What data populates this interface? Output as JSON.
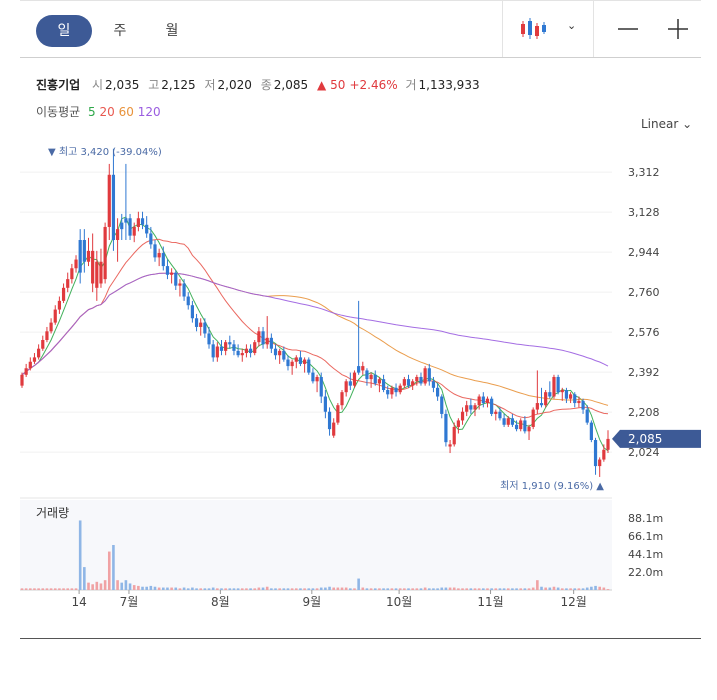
{
  "toolbar": {
    "periods": [
      "일",
      "주",
      "월"
    ],
    "active_period": "일",
    "chart_type_icon": "candlestick-icon",
    "zoom_out_icon": "minus-icon",
    "zoom_in_icon": "plus-icon"
  },
  "stock": {
    "name": "진흥기업",
    "open_label": "시",
    "open": "2,035",
    "high_label": "고",
    "high": "2,125",
    "low_label": "저",
    "low": "2,020",
    "close_label": "종",
    "close": "2,085",
    "change": "50",
    "change_pct": "+2.46%",
    "volume_label": "거",
    "volume": "1,133,933"
  },
  "moving_average": {
    "label": "이동평균",
    "periods": [
      {
        "period": "5",
        "color": "#2ea84a"
      },
      {
        "period": "20",
        "color": "#e8584f"
      },
      {
        "period": "60",
        "color": "#e8923a"
      },
      {
        "period": "120",
        "color": "#9a5de0"
      }
    ]
  },
  "scale_label": "Linear",
  "colors": {
    "up": "#e03a3e",
    "down": "#2f78d2",
    "price_tag": "#3d5a96"
  },
  "chart_data": {
    "type": "candlestick",
    "price_axis": {
      "ylim": [
        1850,
        3460
      ],
      "ticks": [
        "3,312",
        "3,128",
        "2,944",
        "2,760",
        "2,576",
        "2,392",
        "2,208",
        "2,024"
      ]
    },
    "volume_axis": {
      "label": "거래량",
      "ylim": [
        0,
        110
      ],
      "unit": "m",
      "ticks": [
        "88.1m",
        "66.1m",
        "44.1m",
        "22.0m"
      ]
    },
    "x_labels": [
      "14",
      "7월",
      "8월",
      "9월",
      "10월",
      "11월",
      "12월"
    ],
    "current_price": "2,085",
    "max_annotation": "최고 3,420 (-39.04%)",
    "min_annotation": "최저 1,910 (9.16%)",
    "candles": [
      [
        2330,
        2390,
        2320,
        2380,
        2,
        0
      ],
      [
        2380,
        2430,
        2370,
        2410,
        2,
        0
      ],
      [
        2410,
        2460,
        2400,
        2440,
        2,
        0
      ],
      [
        2440,
        2480,
        2430,
        2460,
        2,
        0
      ],
      [
        2460,
        2520,
        2450,
        2500,
        2,
        0
      ],
      [
        2500,
        2560,
        2490,
        2540,
        2,
        0
      ],
      [
        2540,
        2600,
        2530,
        2580,
        2,
        0
      ],
      [
        2580,
        2640,
        2570,
        2620,
        2,
        0
      ],
      [
        2620,
        2700,
        2610,
        2680,
        2,
        0
      ],
      [
        2680,
        2740,
        2660,
        2720,
        2,
        0
      ],
      [
        2720,
        2800,
        2710,
        2780,
        2,
        0
      ],
      [
        2780,
        2850,
        2760,
        2820,
        2,
        0
      ],
      [
        2820,
        2890,
        2800,
        2870,
        2,
        0
      ],
      [
        2870,
        2930,
        2850,
        2910,
        2,
        0
      ],
      [
        2850,
        3050,
        2800,
        3000,
        85,
        1
      ],
      [
        3000,
        3050,
        2850,
        2900,
        28,
        1
      ],
      [
        2900,
        3010,
        2880,
        2950,
        9,
        0
      ],
      [
        2950,
        3030,
        2760,
        2800,
        7,
        0
      ],
      [
        2780,
        2950,
        2720,
        2900,
        10,
        0
      ],
      [
        2900,
        2960,
        2780,
        2800,
        8,
        0
      ],
      [
        2820,
        3080,
        2800,
        3060,
        12,
        0
      ],
      [
        3060,
        3350,
        3000,
        3300,
        47,
        0
      ],
      [
        3300,
        3420,
        2950,
        3000,
        55,
        1
      ],
      [
        3000,
        3100,
        2900,
        3050,
        12,
        0
      ],
      [
        3050,
        3120,
        3000,
        3080,
        9,
        1
      ],
      [
        3080,
        3350,
        3000,
        3100,
        12,
        1
      ],
      [
        3100,
        3120,
        3000,
        3020,
        8,
        1
      ],
      [
        3020,
        3080,
        2990,
        3060,
        6,
        0
      ],
      [
        3060,
        3130,
        3040,
        3100,
        5,
        0
      ],
      [
        3100,
        3130,
        3050,
        3070,
        4,
        1
      ],
      [
        3070,
        3110,
        3010,
        3030,
        4,
        1
      ],
      [
        3030,
        3060,
        2960,
        2980,
        5,
        1
      ],
      [
        2980,
        3000,
        2900,
        2920,
        4,
        1
      ],
      [
        2920,
        2960,
        2880,
        2940,
        3,
        0
      ],
      [
        2940,
        2970,
        2860,
        2880,
        3,
        1
      ],
      [
        2880,
        2910,
        2820,
        2840,
        3,
        1
      ],
      [
        2840,
        2870,
        2800,
        2850,
        3,
        0
      ],
      [
        2850,
        2860,
        2770,
        2790,
        3,
        1
      ],
      [
        2790,
        2820,
        2740,
        2800,
        2,
        0
      ],
      [
        2800,
        2820,
        2720,
        2740,
        3,
        1
      ],
      [
        2740,
        2760,
        2680,
        2700,
        2,
        1
      ],
      [
        2700,
        2720,
        2620,
        2640,
        3,
        1
      ],
      [
        2640,
        2660,
        2580,
        2600,
        2,
        1
      ],
      [
        2600,
        2640,
        2560,
        2620,
        2,
        0
      ],
      [
        2620,
        2640,
        2550,
        2570,
        2,
        1
      ],
      [
        2570,
        2600,
        2500,
        2520,
        2,
        1
      ],
      [
        2520,
        2540,
        2440,
        2460,
        3,
        1
      ],
      [
        2460,
        2530,
        2440,
        2510,
        2,
        0
      ],
      [
        2510,
        2540,
        2470,
        2490,
        2,
        1
      ],
      [
        2490,
        2540,
        2470,
        2530,
        2,
        0
      ],
      [
        2530,
        2560,
        2500,
        2520,
        2,
        1
      ],
      [
        2520,
        2540,
        2470,
        2490,
        2,
        1
      ],
      [
        2490,
        2520,
        2460,
        2470,
        2,
        1
      ],
      [
        2470,
        2500,
        2440,
        2480,
        2,
        0
      ],
      [
        2480,
        2520,
        2460,
        2500,
        2,
        0
      ],
      [
        2500,
        2520,
        2460,
        2480,
        2,
        1
      ],
      [
        2480,
        2540,
        2470,
        2530,
        2,
        0
      ],
      [
        2530,
        2600,
        2510,
        2580,
        3,
        0
      ],
      [
        2580,
        2600,
        2500,
        2520,
        3,
        1
      ],
      [
        2520,
        2650,
        2500,
        2550,
        4,
        0
      ],
      [
        2550,
        2570,
        2480,
        2500,
        2,
        1
      ],
      [
        2500,
        2520,
        2450,
        2470,
        2,
        1
      ],
      [
        2470,
        2500,
        2430,
        2490,
        2,
        0
      ],
      [
        2490,
        2510,
        2440,
        2450,
        2,
        1
      ],
      [
        2450,
        2470,
        2400,
        2420,
        2,
        1
      ],
      [
        2420,
        2450,
        2380,
        2440,
        2,
        0
      ],
      [
        2440,
        2470,
        2410,
        2460,
        2,
        0
      ],
      [
        2460,
        2490,
        2420,
        2430,
        2,
        1
      ],
      [
        2430,
        2460,
        2390,
        2450,
        2,
        0
      ],
      [
        2450,
        2460,
        2380,
        2390,
        2,
        1
      ],
      [
        2390,
        2410,
        2340,
        2350,
        2,
        1
      ],
      [
        2350,
        2380,
        2300,
        2370,
        2,
        0
      ],
      [
        2370,
        2390,
        2250,
        2280,
        3,
        1
      ],
      [
        2280,
        2310,
        2180,
        2210,
        3,
        1
      ],
      [
        2210,
        2230,
        2100,
        2130,
        4,
        1
      ],
      [
        2100,
        2180,
        2090,
        2160,
        3,
        0
      ],
      [
        2160,
        2250,
        2150,
        2240,
        3,
        0
      ],
      [
        2240,
        2310,
        2220,
        2300,
        3,
        0
      ],
      [
        2300,
        2360,
        2280,
        2350,
        3,
        0
      ],
      [
        2350,
        2390,
        2310,
        2330,
        2,
        1
      ],
      [
        2330,
        2400,
        2320,
        2390,
        2,
        0
      ],
      [
        2390,
        2720,
        2380,
        2420,
        14,
        1
      ],
      [
        2420,
        2440,
        2380,
        2400,
        3,
        0
      ],
      [
        2400,
        2410,
        2330,
        2360,
        2,
        1
      ],
      [
        2360,
        2390,
        2320,
        2380,
        2,
        0
      ],
      [
        2380,
        2400,
        2330,
        2340,
        2,
        1
      ],
      [
        2340,
        2370,
        2300,
        2360,
        2,
        0
      ],
      [
        2360,
        2380,
        2300,
        2310,
        2,
        1
      ],
      [
        2310,
        2330,
        2270,
        2290,
        2,
        1
      ],
      [
        2290,
        2330,
        2270,
        2320,
        2,
        0
      ],
      [
        2320,
        2340,
        2280,
        2300,
        2,
        1
      ],
      [
        2300,
        2340,
        2290,
        2330,
        2,
        0
      ],
      [
        2330,
        2370,
        2320,
        2360,
        2,
        0
      ],
      [
        2360,
        2380,
        2320,
        2330,
        2,
        1
      ],
      [
        2330,
        2360,
        2310,
        2350,
        2,
        0
      ],
      [
        2350,
        2380,
        2330,
        2370,
        2,
        0
      ],
      [
        2370,
        2390,
        2330,
        2340,
        2,
        1
      ],
      [
        2340,
        2420,
        2330,
        2410,
        3,
        0
      ],
      [
        2410,
        2430,
        2330,
        2350,
        2,
        1
      ],
      [
        2350,
        2370,
        2300,
        2320,
        2,
        1
      ],
      [
        2320,
        2340,
        2260,
        2280,
        2,
        1
      ],
      [
        2280,
        2290,
        2180,
        2200,
        3,
        1
      ],
      [
        2200,
        2220,
        2050,
        2070,
        3,
        1
      ],
      [
        2050,
        2080,
        2020,
        2060,
        3,
        0
      ],
      [
        2060,
        2160,
        2050,
        2140,
        3,
        0
      ],
      [
        2140,
        2180,
        2110,
        2170,
        2,
        0
      ],
      [
        2170,
        2230,
        2150,
        2210,
        2,
        0
      ],
      [
        2210,
        2260,
        2190,
        2240,
        2,
        0
      ],
      [
        2240,
        2270,
        2200,
        2220,
        2,
        1
      ],
      [
        2220,
        2250,
        2190,
        2240,
        2,
        0
      ],
      [
        2240,
        2290,
        2220,
        2280,
        2,
        0
      ],
      [
        2280,
        2300,
        2230,
        2250,
        2,
        1
      ],
      [
        2250,
        2280,
        2230,
        2270,
        2,
        0
      ],
      [
        2270,
        2280,
        2190,
        2200,
        2,
        1
      ],
      [
        2200,
        2220,
        2170,
        2210,
        2,
        0
      ],
      [
        2210,
        2230,
        2170,
        2180,
        2,
        1
      ],
      [
        2180,
        2200,
        2140,
        2150,
        2,
        1
      ],
      [
        2150,
        2190,
        2140,
        2180,
        2,
        0
      ],
      [
        2180,
        2200,
        2140,
        2150,
        2,
        1
      ],
      [
        2150,
        2170,
        2120,
        2130,
        2,
        1
      ],
      [
        2130,
        2180,
        2120,
        2170,
        2,
        0
      ],
      [
        2170,
        2190,
        2110,
        2120,
        2,
        1
      ],
      [
        2120,
        2150,
        2080,
        2140,
        2,
        0
      ],
      [
        2140,
        2230,
        2130,
        2220,
        3,
        0
      ],
      [
        2220,
        2400,
        2200,
        2250,
        12,
        0
      ],
      [
        2250,
        2320,
        2230,
        2240,
        4,
        1
      ],
      [
        2240,
        2310,
        2230,
        2300,
        3,
        0
      ],
      [
        2300,
        2350,
        2270,
        2280,
        3,
        1
      ],
      [
        2280,
        2380,
        2270,
        2370,
        4,
        0
      ],
      [
        2370,
        2380,
        2290,
        2300,
        3,
        1
      ],
      [
        2300,
        2320,
        2260,
        2310,
        2,
        0
      ],
      [
        2310,
        2320,
        2250,
        2270,
        2,
        1
      ],
      [
        2270,
        2300,
        2250,
        2290,
        2,
        0
      ],
      [
        2290,
        2300,
        2230,
        2250,
        2,
        1
      ],
      [
        2250,
        2280,
        2230,
        2260,
        2,
        0
      ],
      [
        2260,
        2270,
        2200,
        2220,
        2,
        1
      ],
      [
        2220,
        2240,
        2150,
        2160,
        3,
        1
      ],
      [
        2160,
        2170,
        2070,
        2080,
        4,
        1
      ],
      [
        2080,
        2090,
        1920,
        1960,
        5,
        1
      ],
      [
        1960,
        2000,
        1910,
        1990,
        4,
        0
      ],
      [
        1990,
        2060,
        1980,
        2035,
        3,
        0
      ],
      [
        2035,
        2125,
        2020,
        2085,
        1.1,
        0
      ]
    ]
  }
}
